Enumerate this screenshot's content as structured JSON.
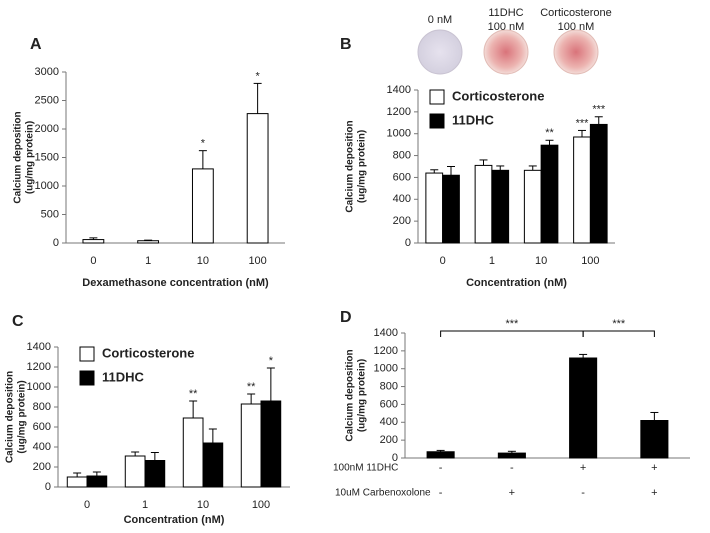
{
  "chart_data": [
    {
      "type": "bar",
      "panel": "A",
      "categories": [
        "0",
        "1",
        "10",
        "100"
      ],
      "series": [
        {
          "name": null,
          "color": "#ffffff",
          "values": [
            60,
            40,
            1300,
            2270
          ],
          "errors": [
            30,
            10,
            320,
            530
          ],
          "significance": [
            null,
            null,
            "*",
            "*"
          ]
        }
      ],
      "ylim": [
        0,
        3000
      ],
      "yticks": [
        0,
        500,
        1000,
        1500,
        2000,
        2500,
        3000
      ],
      "ylabel": [
        "Calcium deposition",
        "(ug/mg protein)"
      ],
      "xlabel": "Dexamethasone concentration (nM)"
    },
    {
      "type": "bar",
      "panel": "B",
      "images": [
        {
          "label": [
            "0 nM"
          ]
        },
        {
          "label": [
            "11DHC",
            "100 nM"
          ]
        },
        {
          "label": [
            "Corticosterone",
            "100 nM"
          ]
        }
      ],
      "categories": [
        "0",
        "1",
        "10",
        "100"
      ],
      "series": [
        {
          "name": "Corticosterone",
          "color": "#ffffff",
          "values": [
            640,
            710,
            665,
            970
          ],
          "errors": [
            30,
            50,
            40,
            60
          ],
          "significance": [
            null,
            null,
            null,
            "***"
          ]
        },
        {
          "name": "11DHC",
          "color": "#000000",
          "values": [
            620,
            665,
            895,
            1085
          ],
          "errors": [
            80,
            40,
            45,
            70
          ],
          "significance": [
            null,
            null,
            "**",
            "***"
          ]
        }
      ],
      "ylim": [
        0,
        1400
      ],
      "yticks": [
        0,
        200,
        400,
        600,
        800,
        1000,
        1200,
        1400
      ],
      "ylabel": [
        "Calcium deposition",
        "(ug/mg protein)"
      ],
      "xlabel": "Concentration (nM)",
      "legend": "top-left"
    },
    {
      "type": "bar",
      "panel": "C",
      "categories": [
        "0",
        "1",
        "10",
        "100"
      ],
      "series": [
        {
          "name": "Corticosterone",
          "color": "#ffffff",
          "values": [
            100,
            310,
            690,
            830
          ],
          "errors": [
            40,
            40,
            170,
            100
          ],
          "significance": [
            null,
            null,
            "**",
            "**"
          ]
        },
        {
          "name": "11DHC",
          "color": "#000000",
          "values": [
            110,
            265,
            440,
            860
          ],
          "errors": [
            40,
            80,
            140,
            330
          ],
          "significance": [
            null,
            null,
            null,
            "*"
          ]
        }
      ],
      "ylim": [
        0,
        1400
      ],
      "yticks": [
        0,
        200,
        400,
        600,
        800,
        1000,
        1200,
        1400
      ],
      "ylabel": [
        "Calcium deposition",
        "(ug/mg protein)"
      ],
      "xlabel": "Concentration (nM)",
      "legend": "top-left"
    },
    {
      "type": "bar",
      "panel": "D",
      "series": [
        {
          "name": null,
          "color": "#000000",
          "values": [
            70,
            55,
            1120,
            420
          ],
          "errors": [
            15,
            20,
            40,
            90
          ],
          "significance": [
            null,
            null,
            null,
            null
          ]
        }
      ],
      "ylim": [
        0,
        1400
      ],
      "yticks": [
        0,
        200,
        400,
        600,
        800,
        1000,
        1200,
        1400
      ],
      "ylabel": [
        "Calcium deposition",
        "(ug/mg protein)"
      ],
      "brackets": [
        {
          "between": [
            0,
            2
          ],
          "label": "***"
        },
        {
          "between": [
            2,
            3
          ],
          "label": "***"
        }
      ],
      "table": {
        "rows": [
          {
            "label": "100nM 11DHC",
            "cells": [
              "-",
              "-",
              "+",
              "+"
            ]
          },
          {
            "label": "10uM Carbenoxolone",
            "cells": [
              "-",
              "+",
              "-",
              "+"
            ]
          }
        ]
      }
    }
  ]
}
